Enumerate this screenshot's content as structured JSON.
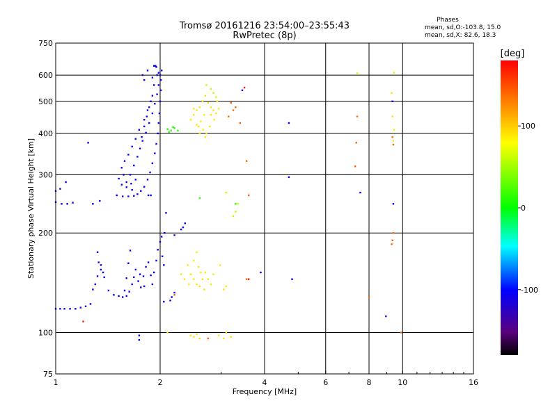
{
  "chart_data": {
    "type": "scatter",
    "title": "Tromsø 20161216 23:54:00–23:55:43",
    "subtitle": "RwPretec (8p)",
    "stats": {
      "heading": "Phases",
      "line1": "mean, sd,O:-103.8, 15.0",
      "line2": "mean, sd,X: 82.6, 18.3"
    },
    "xlabel": "Frequency [MHz]",
    "ylabel": "Stationary phase Virtual Height [km]",
    "x_scale": "log",
    "y_scale": "log",
    "xlim": [
      1,
      16
    ],
    "ylim": [
      75,
      750
    ],
    "grid": true,
    "x_ticks": [
      1,
      2,
      4,
      6,
      8,
      10,
      16
    ],
    "x_tick_labels": [
      "1",
      "2",
      "4",
      "6",
      "8",
      "10",
      "16"
    ],
    "y_ticks": [
      75,
      100,
      200,
      300,
      400,
      500,
      600,
      750
    ],
    "y_tick_labels": [
      "75",
      "100",
      "200",
      "300",
      "400",
      "500",
      "600",
      "750"
    ],
    "colorbar": {
      "label": "[deg]",
      "range": [
        -180,
        180
      ],
      "ticks": [
        -100,
        0,
        100
      ],
      "tick_labels": [
        "-100",
        "0",
        "100"
      ],
      "colors": [
        "#000000",
        "#7f00ff",
        "#0000ff",
        "#00ffff",
        "#00ff00",
        "#ffff00",
        "#ff8000",
        "#ff0000"
      ]
    },
    "series": [
      {
        "phase": -105,
        "points": [
          [
            1.0,
            118
          ],
          [
            1.03,
            118
          ],
          [
            1.06,
            118
          ],
          [
            1.1,
            118
          ],
          [
            1.14,
            118
          ],
          [
            1.18,
            119
          ],
          [
            1.22,
            120
          ],
          [
            1.26,
            122
          ],
          [
            1.28,
            135
          ],
          [
            1.3,
            140
          ],
          [
            1.32,
            148
          ],
          [
            1.35,
            155
          ],
          [
            1.33,
            163
          ],
          [
            1.38,
            147
          ],
          [
            1.42,
            134
          ],
          [
            1.47,
            130
          ],
          [
            1.52,
            129
          ],
          [
            1.56,
            128
          ],
          [
            1.6,
            129
          ],
          [
            1.63,
            133
          ],
          [
            1.66,
            140
          ],
          [
            1.68,
            147
          ],
          [
            1.7,
            155
          ],
          [
            1.73,
            143
          ],
          [
            1.76,
            137
          ],
          [
            1.79,
            148
          ],
          [
            1.82,
            158
          ],
          [
            1.85,
            163
          ],
          [
            1.88,
            149
          ],
          [
            1.9,
            140
          ],
          [
            1.92,
            152
          ],
          [
            1.95,
            165
          ],
          [
            1.97,
            178
          ],
          [
            2.0,
            188
          ],
          [
            2.03,
            170
          ],
          [
            2.05,
            160
          ],
          [
            1.32,
            175
          ],
          [
            1.35,
            160
          ],
          [
            1.37,
            152
          ],
          [
            1.58,
            134
          ],
          [
            1.6,
            146
          ],
          [
            1.62,
            162
          ],
          [
            1.64,
            177
          ],
          [
            1.75,
            150
          ],
          [
            1.8,
            138
          ],
          [
            2.02,
            195
          ],
          [
            2.06,
            200
          ],
          [
            2.3,
            205
          ],
          [
            2.33,
            208
          ],
          [
            2.36,
            214
          ],
          [
            2.2,
            197
          ],
          [
            2.14,
            125
          ],
          [
            2.16,
            128
          ],
          [
            2.2,
            132
          ],
          [
            2.05,
            124
          ],
          [
            1.5,
            260
          ],
          [
            1.56,
            258
          ],
          [
            1.62,
            258
          ],
          [
            1.68,
            259
          ],
          [
            1.72,
            262
          ],
          [
            1.76,
            268
          ],
          [
            1.8,
            276
          ],
          [
            1.84,
            290
          ],
          [
            1.87,
            305
          ],
          [
            1.9,
            325
          ],
          [
            1.93,
            348
          ],
          [
            1.95,
            372
          ],
          [
            1.97,
            400
          ],
          [
            1.98,
            430
          ],
          [
            1.99,
            460
          ],
          [
            2.0,
            500
          ],
          [
            2.01,
            540
          ],
          [
            2.01,
            580
          ],
          [
            2.02,
            620
          ],
          [
            1.96,
            600
          ],
          [
            1.92,
            560
          ],
          [
            1.9,
            520
          ],
          [
            1.86,
            480
          ],
          [
            1.83,
            450
          ],
          [
            1.8,
            420
          ],
          [
            1.77,
            390
          ],
          [
            1.7,
            290
          ],
          [
            1.65,
            282
          ],
          [
            1.6,
            285
          ],
          [
            1.64,
            300
          ],
          [
            1.68,
            320
          ],
          [
            1.72,
            340
          ],
          [
            1.75,
            360
          ],
          [
            1.78,
            380
          ],
          [
            1.82,
            402
          ],
          [
            1.86,
            430
          ],
          [
            1.9,
            460
          ],
          [
            1.93,
            492
          ],
          [
            1.96,
            525
          ],
          [
            1.98,
            560
          ],
          [
            2.0,
            600
          ],
          [
            1.94,
            640
          ],
          [
            1.88,
            500
          ],
          [
            1.84,
            470
          ],
          [
            1.8,
            440
          ],
          [
            1.74,
            410
          ],
          [
            1.7,
            385
          ],
          [
            1.66,
            365
          ],
          [
            1.62,
            345
          ],
          [
            1.58,
            330
          ],
          [
            1.55,
            315
          ],
          [
            1.57,
            300
          ],
          [
            1.52,
            292
          ],
          [
            1.55,
            280
          ],
          [
            1.6,
            275
          ],
          [
            1.66,
            270
          ],
          [
            1.78,
            600
          ],
          [
            1.8,
            580
          ],
          [
            1.84,
            620
          ],
          [
            1.9,
            590
          ],
          [
            1.92,
            640
          ],
          [
            1.95,
            635
          ],
          [
            1.98,
            610
          ],
          [
            1.0,
            248
          ],
          [
            1.04,
            245
          ],
          [
            1.08,
            245
          ],
          [
            1.12,
            247
          ],
          [
            1.28,
            245
          ],
          [
            1.34,
            250
          ],
          [
            1.0,
            268
          ],
          [
            1.03,
            272
          ],
          [
            1.07,
            285
          ],
          [
            1.24,
            375
          ],
          [
            1.85,
            260
          ],
          [
            1.88,
            260
          ],
          [
            2.08,
            230
          ],
          [
            1.74,
            98
          ],
          [
            1.74,
            95
          ],
          [
            3.45,
            540
          ],
          [
            4.7,
            430
          ],
          [
            4.7,
            295
          ],
          [
            4.8,
            145
          ],
          [
            7.55,
            265
          ],
          [
            9.4,
            245
          ],
          [
            9.35,
            500
          ],
          [
            8.95,
            112
          ],
          [
            3.9,
            152
          ]
        ]
      },
      {
        "phase": 10,
        "points": [
          [
            2.1,
            412
          ],
          [
            2.15,
            408
          ],
          [
            2.18,
            418
          ],
          [
            2.2,
            415
          ],
          [
            2.25,
            408
          ],
          [
            2.12,
            404
          ],
          [
            2.6,
            255
          ],
          [
            3.3,
            245
          ]
        ]
      },
      {
        "phase": 60,
        "points": [
          [
            2.72,
            560
          ],
          [
            2.8,
            545
          ],
          [
            2.85,
            530
          ],
          [
            2.9,
            515
          ],
          [
            3.3,
            232
          ],
          [
            3.35,
            245
          ],
          [
            3.25,
            225
          ],
          [
            3.1,
            265
          ],
          [
            7.4,
            608
          ],
          [
            9.45,
            610
          ]
        ]
      },
      {
        "phase": 90,
        "points": [
          [
            2.45,
            440
          ],
          [
            2.5,
            455
          ],
          [
            2.55,
            470
          ],
          [
            2.6,
            480
          ],
          [
            2.65,
            500
          ],
          [
            2.7,
            520
          ],
          [
            2.75,
            495
          ],
          [
            2.8,
            480
          ],
          [
            2.85,
            470
          ],
          [
            2.62,
            435
          ],
          [
            2.58,
            420
          ],
          [
            2.66,
            410
          ],
          [
            2.72,
            400
          ],
          [
            2.78,
            420
          ],
          [
            2.86,
            440
          ],
          [
            2.9,
            460
          ],
          [
            2.95,
            475
          ],
          [
            2.92,
            500
          ],
          [
            2.68,
            455
          ],
          [
            2.55,
            425
          ],
          [
            2.6,
            400
          ],
          [
            2.7,
            390
          ],
          [
            2.8,
            455
          ],
          [
            2.5,
            475
          ],
          [
            2.4,
            160
          ],
          [
            2.45,
            150
          ],
          [
            2.5,
            145
          ],
          [
            2.55,
            140
          ],
          [
            2.6,
            138
          ],
          [
            2.65,
            145
          ],
          [
            2.7,
            152
          ],
          [
            2.75,
            145
          ],
          [
            2.8,
            140
          ],
          [
            2.5,
            165
          ],
          [
            2.55,
            175
          ],
          [
            2.42,
            140
          ],
          [
            2.58,
            158
          ],
          [
            2.62,
            152
          ],
          [
            2.68,
            135
          ],
          [
            2.35,
            145
          ],
          [
            2.3,
            150
          ],
          [
            2.85,
            150
          ],
          [
            3.05,
            135
          ],
          [
            3.1,
            138
          ],
          [
            2.98,
            160
          ],
          [
            2.45,
            98
          ],
          [
            2.5,
            97
          ],
          [
            2.55,
            99
          ],
          [
            2.6,
            96
          ],
          [
            2.95,
            98
          ],
          [
            3.05,
            96
          ],
          [
            3.2,
            97
          ],
          [
            3.1,
            100
          ],
          [
            9.3,
            530
          ],
          [
            9.35,
            450
          ],
          [
            9.4,
            380
          ],
          [
            9.45,
            410
          ],
          [
            2.1,
            100
          ]
        ]
      },
      {
        "phase": 140,
        "points": [
          [
            3.15,
            450
          ],
          [
            3.25,
            470
          ],
          [
            3.3,
            480
          ],
          [
            3.2,
            495
          ],
          [
            3.4,
            430
          ],
          [
            3.55,
            330
          ],
          [
            3.6,
            260
          ],
          [
            3.55,
            145
          ],
          [
            7.4,
            450
          ],
          [
            7.35,
            375
          ],
          [
            7.3,
            318
          ],
          [
            9.4,
            200
          ],
          [
            9.35,
            190
          ],
          [
            9.3,
            185
          ],
          [
            9.35,
            390
          ],
          [
            9.4,
            370
          ],
          [
            2.2,
            130
          ],
          [
            8.0,
            128
          ],
          [
            9.9,
            100
          ],
          [
            2.75,
            96
          ]
        ]
      },
      {
        "phase": 170,
        "points": [
          [
            1.2,
            108
          ],
          [
            3.5,
            550
          ],
          [
            3.6,
            145
          ]
        ]
      }
    ]
  }
}
